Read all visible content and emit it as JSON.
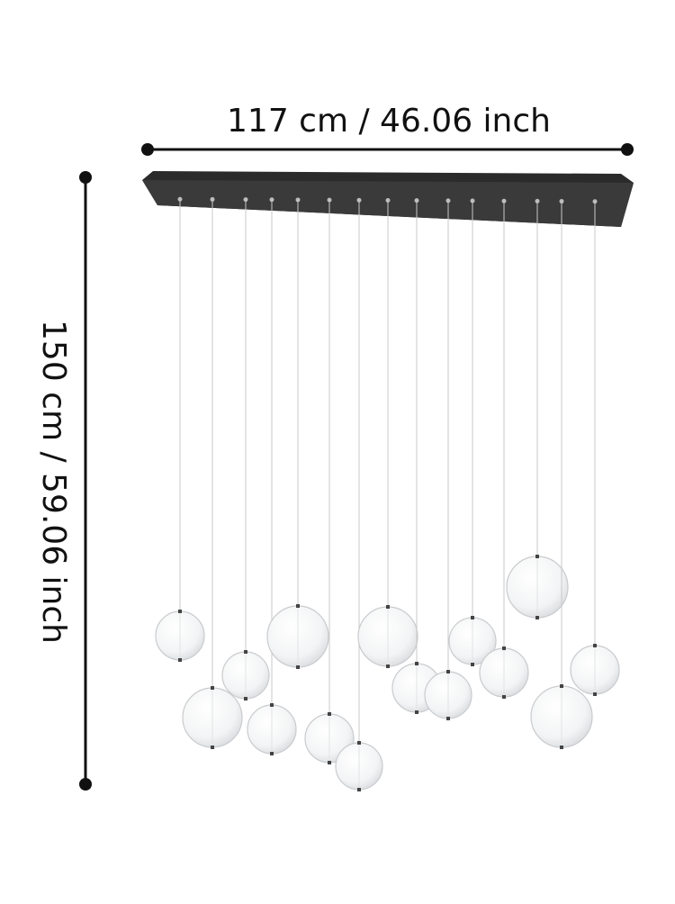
{
  "dimensions": {
    "width": "117 cm / 46.06 inch",
    "height": "150 cm / 59.06 inch"
  }
}
